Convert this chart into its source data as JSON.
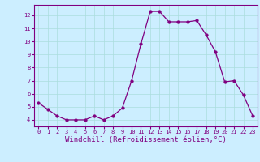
{
  "x": [
    0,
    1,
    2,
    3,
    4,
    5,
    6,
    7,
    8,
    9,
    10,
    11,
    12,
    13,
    14,
    15,
    16,
    17,
    18,
    19,
    20,
    21,
    22,
    23
  ],
  "y": [
    5.3,
    4.8,
    4.3,
    4.0,
    4.0,
    4.0,
    4.3,
    4.0,
    4.3,
    4.9,
    7.0,
    9.8,
    12.3,
    12.3,
    11.5,
    11.5,
    11.5,
    11.6,
    10.5,
    9.2,
    6.9,
    7.0,
    5.9,
    4.3
  ],
  "line_color": "#800080",
  "marker": "o",
  "marker_size": 2.5,
  "bg_color": "#cceeff",
  "grid_color": "#aadddd",
  "xlabel": "Windchill (Refroidissement éolien,°C)",
  "xlabel_color": "#800080",
  "xlabel_fontsize": 6.5,
  "tick_color": "#800080",
  "ylim": [
    3.5,
    12.8
  ],
  "yticks": [
    4,
    5,
    6,
    7,
    8,
    9,
    10,
    11,
    12
  ],
  "xlim": [
    -0.5,
    23.5
  ],
  "xticks": [
    0,
    1,
    2,
    3,
    4,
    5,
    6,
    7,
    8,
    9,
    10,
    11,
    12,
    13,
    14,
    15,
    16,
    17,
    18,
    19,
    20,
    21,
    22,
    23
  ],
  "spine_color": "#800080"
}
